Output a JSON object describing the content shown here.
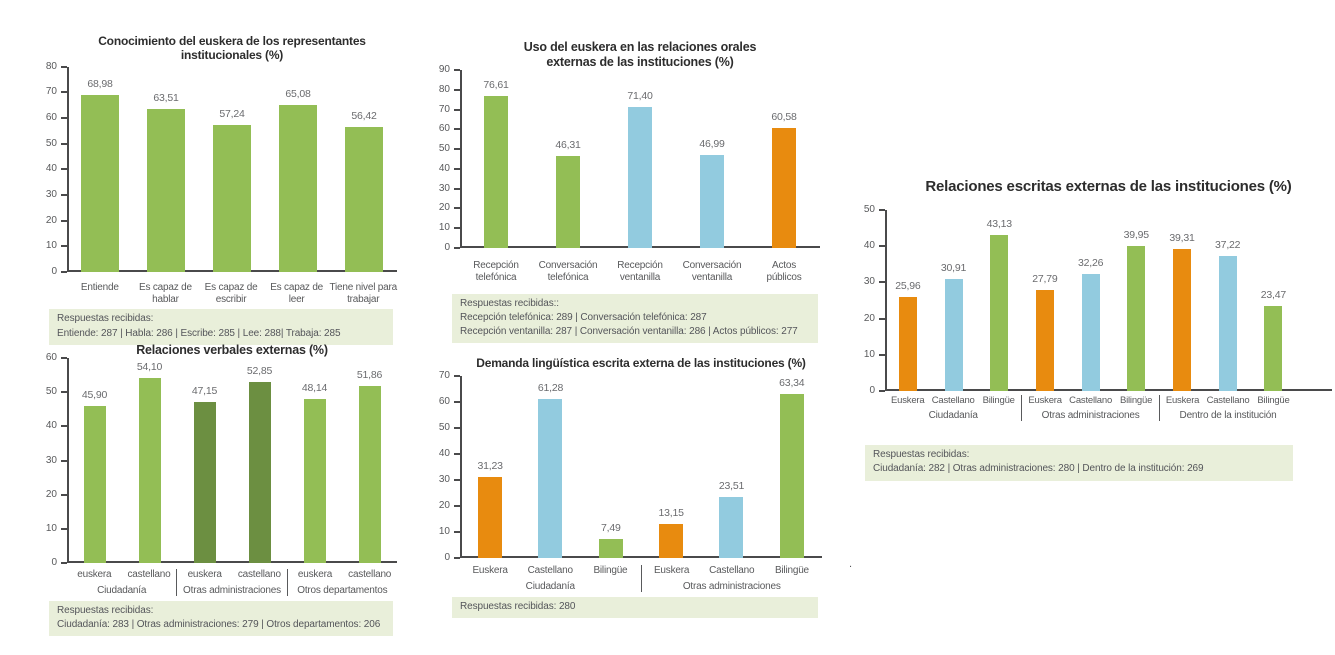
{
  "page": {
    "background": "#FFFFFF"
  },
  "colors": {
    "green": "#93BE55",
    "dark_green": "#6C8F41",
    "blue": "#92CBDF",
    "orange": "#E88B0F",
    "note_background": "#E9EFDA",
    "axis": "#4A4A4B",
    "title_text": "#2D2D2D",
    "label_text": "#58595B",
    "value_text": "#6A6B6E"
  },
  "stray_mark": ".",
  "chart_data": [
    {
      "key": "c1",
      "type": "bar",
      "title_lines": [
        "Conocimiento del euskera de los representantes",
        "institucionales (%)"
      ],
      "xlabel": "",
      "ylabel": "",
      "ylim": [
        0,
        80
      ],
      "ytick_step": 10,
      "grid": false,
      "legend": "none",
      "groups": [
        {
          "label": "",
          "bars": [
            {
              "category": "Entiende",
              "value": 68.98,
              "value_label": "68,98",
              "color_key": "green"
            },
            {
              "category": "Es capaz de\nhablar",
              "value": 63.51,
              "value_label": "63,51",
              "color_key": "green"
            },
            {
              "category": "Es capaz de\nescribir",
              "value": 57.24,
              "value_label": "57,24",
              "color_key": "green"
            },
            {
              "category": "Es capaz de\nleer",
              "value": 65.08,
              "value_label": "65,08",
              "color_key": "green"
            },
            {
              "category": "Tiene nivel para\ntrabajar",
              "value": 56.42,
              "value_label": "56,42",
              "color_key": "green"
            }
          ]
        }
      ],
      "note_lines": [
        "Respuestas recibidas:",
        "Entiende: 287 | Habla: 286 | Escribe: 285 | Lee: 288| Trabaja: 285"
      ]
    },
    {
      "key": "c2",
      "type": "bar",
      "title_lines": [
        "Uso del euskera en las relaciones orales",
        "externas de las instituciones (%)"
      ],
      "xlabel": "",
      "ylabel": "",
      "ylim": [
        0,
        90
      ],
      "ytick_step": 10,
      "grid": false,
      "legend": "none",
      "groups": [
        {
          "label": "",
          "bars": [
            {
              "category": "Recepción\ntelefónica",
              "value": 76.61,
              "value_label": "76,61",
              "color_key": "green"
            },
            {
              "category": "Conversación\ntelefónica",
              "value": 46.31,
              "value_label": "46,31",
              "color_key": "green"
            },
            {
              "category": "Recepción\nventanilla",
              "value": 71.4,
              "value_label": "71,40",
              "color_key": "blue"
            },
            {
              "category": "Conversación\nventanilla",
              "value": 46.99,
              "value_label": "46,99",
              "color_key": "blue"
            },
            {
              "category": "Actos\npúblicos",
              "value": 60.58,
              "value_label": "60,58",
              "color_key": "orange"
            }
          ]
        }
      ],
      "note_lines": [
        "Respuestas recibidas::",
        "Recepción telefónica: 289 | Conversación telefónica: 287",
        "Recepción ventanilla: 287 | Conversación ventanilla: 286 | Actos públicos: 277"
      ]
    },
    {
      "key": "c3",
      "type": "bar",
      "title_lines": [
        "Relaciones escritas externas de las instituciones (%)"
      ],
      "xlabel": "",
      "ylabel": "",
      "ylim": [
        0,
        50
      ],
      "ytick_step": 10,
      "grid": false,
      "legend": "none",
      "groups": [
        {
          "label": "Ciudadanía",
          "bars": [
            {
              "category": "Euskera",
              "value": 25.96,
              "value_label": "25,96",
              "color_key": "orange"
            },
            {
              "category": "Castellano",
              "value": 30.91,
              "value_label": "30,91",
              "color_key": "blue"
            },
            {
              "category": "Bilingüe",
              "value": 43.13,
              "value_label": "43,13",
              "color_key": "green"
            }
          ]
        },
        {
          "label": "Otras administraciones",
          "bars": [
            {
              "category": "Euskera",
              "value": 27.79,
              "value_label": "27,79",
              "color_key": "orange"
            },
            {
              "category": "Castellano",
              "value": 32.26,
              "value_label": "32,26",
              "color_key": "blue"
            },
            {
              "category": "Bilingüe",
              "value": 39.95,
              "value_label": "39,95",
              "color_key": "green"
            }
          ]
        },
        {
          "label": "Dentro de la institución",
          "bars": [
            {
              "category": "Euskera",
              "value": 39.31,
              "value_label": "39,31",
              "color_key": "orange"
            },
            {
              "category": "Castellano",
              "value": 37.22,
              "value_label": "37,22",
              "color_key": "blue"
            },
            {
              "category": "Bilingüe",
              "value": 23.47,
              "value_label": "23,47",
              "color_key": "green"
            }
          ]
        }
      ],
      "note_lines": [
        "Respuestas recibidas:",
        "Ciudadanía: 282 | Otras administraciones: 280 | Dentro de la institución: 269"
      ]
    },
    {
      "key": "c4",
      "type": "bar",
      "title_lines": [
        "Relaciones verbales externas (%)"
      ],
      "xlabel": "",
      "ylabel": "",
      "ylim": [
        0,
        60
      ],
      "ytick_step": 10,
      "grid": false,
      "legend": "none",
      "groups": [
        {
          "label": "Ciudadanía",
          "bars": [
            {
              "category": "euskera",
              "value": 45.9,
              "value_label": "45,90",
              "color_key": "green"
            },
            {
              "category": "castellano",
              "value": 54.1,
              "value_label": "54,10",
              "color_key": "green"
            }
          ]
        },
        {
          "label": "Otras administraciones",
          "bars": [
            {
              "category": "euskera",
              "value": 47.15,
              "value_label": "47,15",
              "color_key": "dark_green"
            },
            {
              "category": "castellano",
              "value": 52.85,
              "value_label": "52,85",
              "color_key": "dark_green"
            }
          ]
        },
        {
          "label": "Otros departamentos",
          "bars": [
            {
              "category": "euskera",
              "value": 48.14,
              "value_label": "48,14",
              "color_key": "green"
            },
            {
              "category": "castellano",
              "value": 51.86,
              "value_label": "51,86",
              "color_key": "green"
            }
          ]
        }
      ],
      "note_lines": [
        "Respuestas recibidas:",
        "Ciudadanía: 283 | Otras administraciones: 279 | Otros departamentos: 206"
      ]
    },
    {
      "key": "c5",
      "type": "bar",
      "title_lines": [
        "Demanda lingüística escrita externa de las instituciones (%)"
      ],
      "xlabel": "",
      "ylabel": "",
      "ylim": [
        0,
        70
      ],
      "ytick_step": 10,
      "grid": false,
      "legend": "none",
      "groups": [
        {
          "label": "Ciudadanía",
          "bars": [
            {
              "category": "Euskera",
              "value": 31.23,
              "value_label": "31,23",
              "color_key": "orange"
            },
            {
              "category": "Castellano",
              "value": 61.28,
              "value_label": "61,28",
              "color_key": "blue"
            },
            {
              "category": "Bilingüe",
              "value": 7.49,
              "value_label": "7,49",
              "color_key": "green"
            }
          ]
        },
        {
          "label": "Otras administraciones",
          "bars": [
            {
              "category": "Euskera",
              "value": 13.15,
              "value_label": "13,15",
              "color_key": "orange"
            },
            {
              "category": "Castellano",
              "value": 23.51,
              "value_label": "23,51",
              "color_key": "blue"
            },
            {
              "category": "Bilingüe",
              "value": 63.34,
              "value_label": "63,34",
              "color_key": "green"
            }
          ]
        }
      ],
      "note_lines": [
        "Respuestas recibidas: 280"
      ]
    }
  ]
}
